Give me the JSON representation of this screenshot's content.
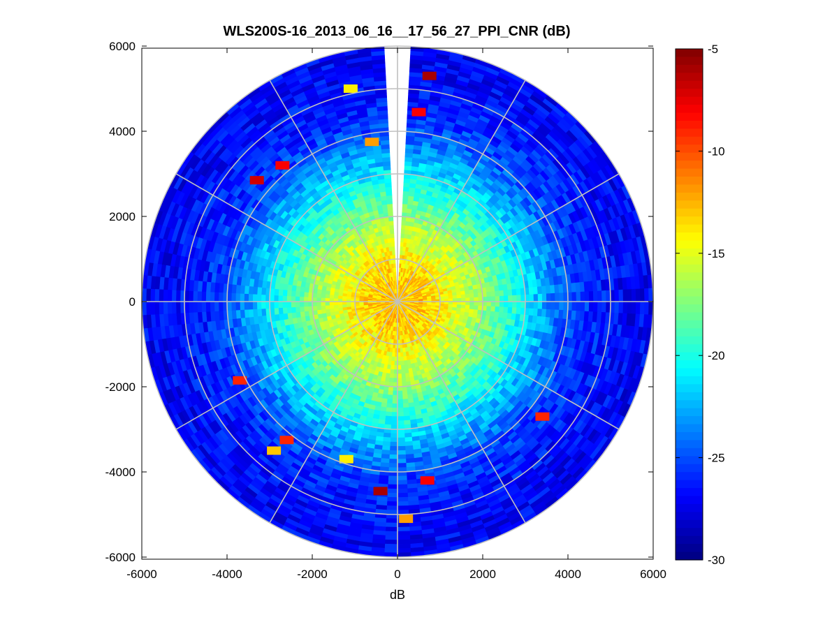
{
  "chart_data": {
    "type": "heatmap",
    "subtype": "polar-ppi",
    "title": "WLS200S-16_2013_06_16__17_56_27_PPI_CNR (dB)",
    "xlabel": "dB",
    "ylabel": "",
    "xlim": [
      -6000,
      6000
    ],
    "ylim": [
      -6000,
      6000
    ],
    "x_ticks": [
      -6000,
      -4000,
      -2000,
      0,
      2000,
      4000,
      6000
    ],
    "y_ticks": [
      -6000,
      -4000,
      -2000,
      0,
      2000,
      4000,
      6000
    ],
    "max_range": 6000,
    "range_rings": [
      1000,
      2000,
      3000,
      4000,
      5000,
      6000
    ],
    "spoke_angles_deg": [
      0,
      30,
      60,
      90,
      120,
      150,
      180,
      210,
      240,
      270,
      300,
      330
    ],
    "blind_sector_bearing_deg": [
      356,
      4
    ],
    "colorbar": {
      "colormap": "jet",
      "clim": [
        -30,
        -5
      ],
      "ticks": [
        -5,
        -10,
        -15,
        -20,
        -25,
        -30
      ]
    },
    "cnr_profile": {
      "range_m": [
        0,
        500,
        1000,
        1500,
        2000,
        2500,
        3000,
        3500,
        4000,
        4500,
        5000,
        5500,
        6000
      ],
      "cnr_db": [
        -13,
        -13,
        -14,
        -15.5,
        -17,
        -19,
        -21,
        -23,
        -25,
        -26,
        -26.5,
        -27,
        -27
      ]
    },
    "hotspots": [
      {
        "x": 750,
        "y": 5300,
        "cnr_db": -6
      },
      {
        "x": -1100,
        "y": 5000,
        "cnr_db": -14
      },
      {
        "x": 500,
        "y": 4450,
        "cnr_db": -8
      },
      {
        "x": -600,
        "y": 3750,
        "cnr_db": -12
      },
      {
        "x": -2700,
        "y": 3200,
        "cnr_db": -8
      },
      {
        "x": -3300,
        "y": 2850,
        "cnr_db": -7
      },
      {
        "x": -3700,
        "y": -1850,
        "cnr_db": -9
      },
      {
        "x": -2600,
        "y": -3250,
        "cnr_db": -9
      },
      {
        "x": -2900,
        "y": -3500,
        "cnr_db": -13
      },
      {
        "x": -1200,
        "y": -3700,
        "cnr_db": -14
      },
      {
        "x": -400,
        "y": -4450,
        "cnr_db": -6
      },
      {
        "x": 700,
        "y": -4200,
        "cnr_db": -8
      },
      {
        "x": 200,
        "y": -5100,
        "cnr_db": -12
      },
      {
        "x": 3400,
        "y": -2700,
        "cnr_db": -9
      }
    ]
  }
}
